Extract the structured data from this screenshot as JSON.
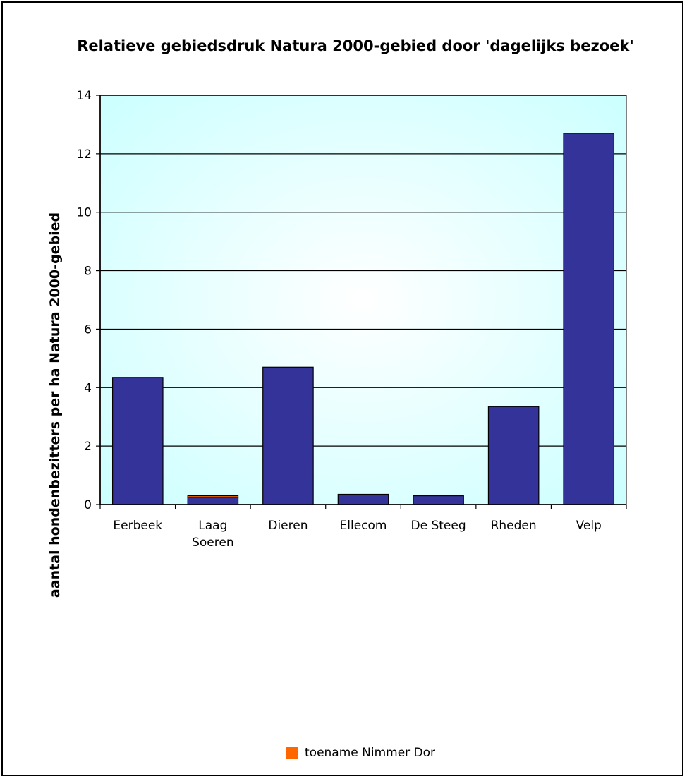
{
  "chart_data": {
    "type": "bar",
    "title": "Relatieve gebiedsdruk Natura 2000-gebied door 'dagelijks bezoek'",
    "xlabel": "",
    "ylabel": "aantal hondenbezitters per ha Natura 2000-gebied",
    "ylim": [
      0,
      14
    ],
    "yticks": [
      "0",
      "2",
      "4",
      "6",
      "8",
      "10",
      "12",
      "14"
    ],
    "grid": true,
    "legend_position": "bottom",
    "categories": [
      "Eerbeek",
      "Laag Soeren",
      "Dieren",
      "Ellecom",
      "De Steeg",
      "Rheden",
      "Velp"
    ],
    "series": [
      {
        "values": [
          4.35,
          0.25,
          4.7,
          0.35,
          0.3,
          3.35,
          12.7
        ],
        "color": "#333399"
      },
      {
        "name": "toename Nimmer Dor",
        "values": [
          0,
          0.05,
          0,
          0,
          0,
          0,
          0
        ],
        "color": "#ff6600"
      }
    ],
    "plot_background": "#ccffff"
  }
}
